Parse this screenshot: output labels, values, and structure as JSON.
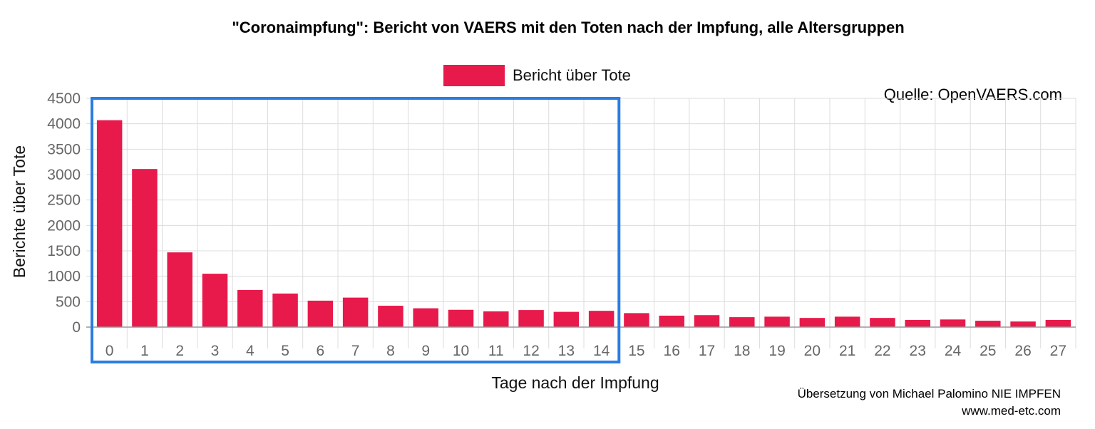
{
  "chart_data": {
    "type": "bar",
    "title": "\"Coronaimpfung\": Bericht von VAERS mit den Toten nach der Impfung, alle Altersgruppen",
    "xlabel": "Tage nach der Impfung",
    "ylabel": "Berichte über Tote",
    "ylim": [
      0,
      4500
    ],
    "yticks": [
      0,
      500,
      1000,
      1500,
      2000,
      2500,
      3000,
      3500,
      4000,
      4500
    ],
    "grid": true,
    "legend_position": "top-center",
    "categories": [
      "0",
      "1",
      "2",
      "3",
      "4",
      "5",
      "6",
      "7",
      "8",
      "9",
      "10",
      "11",
      "12",
      "13",
      "14",
      "15",
      "16",
      "17",
      "18",
      "19",
      "20",
      "21",
      "22",
      "23",
      "24",
      "25",
      "26",
      "27"
    ],
    "series": [
      {
        "name": "Bericht über Tote",
        "color": "#e8194b",
        "values": [
          4070,
          3110,
          1470,
          1050,
          730,
          660,
          520,
          580,
          420,
          370,
          340,
          310,
          335,
          300,
          320,
          275,
          225,
          235,
          195,
          205,
          180,
          205,
          180,
          140,
          150,
          125,
          110,
          140
        ]
      }
    ],
    "highlight": {
      "from_category": "0",
      "to_category": "14",
      "color": "#2a7de1"
    },
    "source": "Quelle: OpenVAERS.com",
    "credit_line1": "Übersetzung von Michael Palomino NIE IMPFEN",
    "credit_line2": "www.med-etc.com"
  }
}
